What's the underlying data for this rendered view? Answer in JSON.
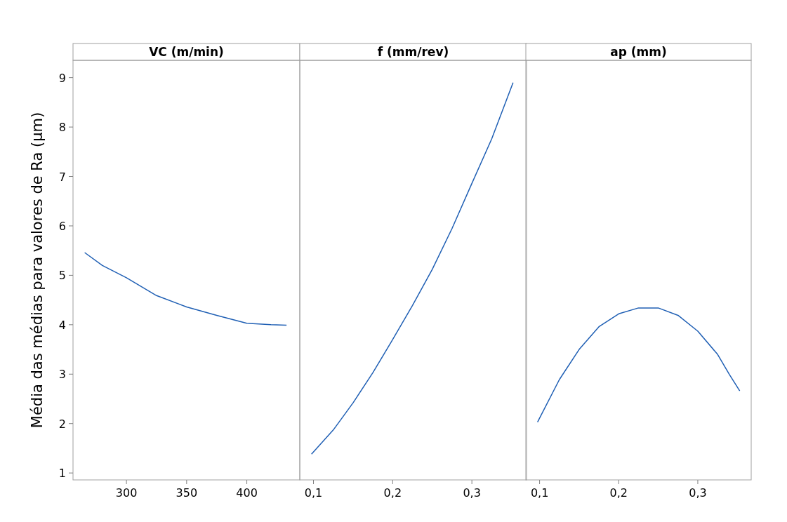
{
  "chart_data": [
    {
      "type": "line",
      "title": "VC (m/min)",
      "ylabel": "Média das médias para valores de Ra (µm)",
      "x": [
        265.3,
        280,
        300,
        325,
        350,
        375,
        400,
        420,
        433
      ],
      "series": [
        {
          "color": "#1f5fb4",
          "values": [
            5.46,
            5.2,
            4.95,
            4.59,
            4.36,
            4.19,
            4.03,
            4.0,
            3.99
          ]
        }
      ],
      "xlim": [
        255.6,
        444
      ],
      "xticks": [
        300,
        350,
        400
      ],
      "ylim": [
        0.86,
        9.35
      ],
      "yticks": [
        1,
        2,
        3,
        4,
        5,
        6,
        7,
        8,
        9
      ],
      "grid": false
    },
    {
      "type": "line",
      "title": "f (mm/rev)",
      "x": [
        0.0975,
        0.125,
        0.15,
        0.175,
        0.2,
        0.225,
        0.25,
        0.275,
        0.3,
        0.325,
        0.352
      ],
      "series": [
        {
          "color": "#1f5fb4",
          "values": [
            1.38,
            1.87,
            2.42,
            3.03,
            3.7,
            4.39,
            5.12,
            5.95,
            6.86,
            7.76,
            8.9
          ]
        }
      ],
      "xlim": [
        0.0827,
        0.369
      ],
      "xticks": [
        {
          "value": 0.1,
          "label": "0,1"
        },
        {
          "value": 0.2,
          "label": "0,2"
        },
        {
          "value": 0.3,
          "label": "0,3"
        }
      ],
      "ylim": [
        0.86,
        9.35
      ],
      "tick_labels": "x",
      "grid": false
    },
    {
      "type": "line",
      "title": "ap (mm)",
      "x": [
        0.0974,
        0.125,
        0.15,
        0.175,
        0.2,
        0.225,
        0.25,
        0.275,
        0.3,
        0.325,
        0.34,
        0.353
      ],
      "series": [
        {
          "color": "#1f5fb4",
          "values": [
            2.03,
            2.89,
            3.5,
            3.96,
            4.22,
            4.34,
            4.34,
            4.19,
            3.87,
            3.4,
            2.99,
            2.66
          ]
        }
      ],
      "xlim": [
        0.0826,
        0.3675
      ],
      "xticks": [
        {
          "value": 0.1,
          "label": "0,1"
        },
        {
          "value": 0.2,
          "label": "0,2"
        },
        {
          "value": 0.3,
          "label": "0,3"
        }
      ],
      "ylim": [
        0.86,
        9.35
      ],
      "tick_labels": "x",
      "grid": false
    }
  ]
}
